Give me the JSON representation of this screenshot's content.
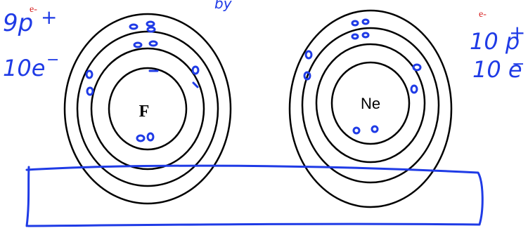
{
  "colors": {
    "ink": "#000000",
    "pen_blue": "#1f3be6",
    "marker_red": "#d61f1f"
  },
  "atoms": [
    {
      "id": "fluorine",
      "symbol": "F",
      "symbol_style": "serif-bold",
      "shells": 4
    },
    {
      "id": "neon",
      "symbol": "Ne",
      "symbol_style": "sans",
      "shells": 4
    }
  ],
  "annotations": {
    "left_protons": "9p",
    "left_plus": "+",
    "left_electrons": "10e",
    "left_minus": "−",
    "left_marker": "e-",
    "right_protons": "10 p",
    "right_plus": "+",
    "right_electrons": "10 e",
    "right_minus": "−",
    "right_marker": "e-",
    "top_fragment": "by"
  }
}
